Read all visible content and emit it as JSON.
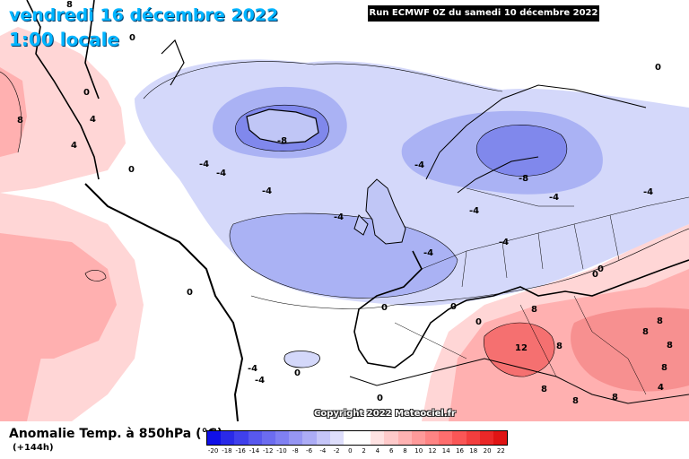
{
  "header": {
    "date": "vendredi 16 décembre 2022",
    "local_time": "1:00 locale",
    "run": "Run ECMWF 0Z du samedi 10 décembre 2022"
  },
  "copyright": "Copyright 2022 Meteociel.fr",
  "legend": {
    "variable": "Anomalie Temp. à 850hPa (°C)",
    "forecast_hour": "(+144h)",
    "ticks": [
      "-20",
      "-18",
      "-16",
      "-14",
      "-12",
      "-10",
      "-8",
      "-6",
      "-4",
      "-2",
      "0",
      "2",
      "4",
      "6",
      "8",
      "10",
      "12",
      "14",
      "16",
      "18",
      "20",
      "22"
    ],
    "colors": [
      "#1010e8",
      "#2a2ae8",
      "#4040ec",
      "#5858ee",
      "#6c6cf0",
      "#8080f2",
      "#9696f4",
      "#acacf6",
      "#c6c6f8",
      "#dedefb",
      "#ffffff",
      "#ffffff",
      "#ffe2e2",
      "#ffcaca",
      "#ffb2b2",
      "#ff9a9a",
      "#ff8484",
      "#ff6e6e",
      "#fa5656",
      "#f23e3e",
      "#ea2828",
      "#e01414"
    ]
  },
  "colors": {
    "cold_light": "#d4d8fa",
    "cold_medium": "#aab2f4",
    "cold_strong": "#8088ec",
    "warm_light": "#ffd6d6",
    "warm_medium": "#ffb0b0",
    "warm_strong": "#f57070",
    "neutral": "#ffffff"
  },
  "map_labels": [
    {
      "id": "greenland-warm-8",
      "text": "8"
    },
    {
      "id": "greenland-0-a",
      "text": "0"
    },
    {
      "id": "greenland-4-a",
      "text": "4"
    },
    {
      "id": "greenland-4-b",
      "text": "4"
    },
    {
      "id": "greenland-0-b",
      "text": "0"
    },
    {
      "id": "greenland-0-c",
      "text": "0"
    },
    {
      "id": "labrador-8",
      "text": "8"
    },
    {
      "id": "atlantic-4-a",
      "text": "-4"
    },
    {
      "id": "atlantic-4-b",
      "text": "-4"
    },
    {
      "id": "atlantic-4-c",
      "text": "-4"
    },
    {
      "id": "atlantic-4-d",
      "text": "-4"
    },
    {
      "id": "iceland-8",
      "text": "-8"
    },
    {
      "id": "norway-4",
      "text": "-4"
    },
    {
      "id": "scandinavia-8",
      "text": "-8"
    },
    {
      "id": "russia-4",
      "text": "-4"
    },
    {
      "id": "russia-0",
      "text": "0"
    },
    {
      "id": "uk-4",
      "text": "-4"
    },
    {
      "id": "europe-4-a",
      "text": "-4"
    },
    {
      "id": "europe-4-b",
      "text": "-4"
    },
    {
      "id": "europe-4-c",
      "text": "-4"
    },
    {
      "id": "atlantic-0",
      "text": "0"
    },
    {
      "id": "iberia-0-a",
      "text": "0"
    },
    {
      "id": "iberia-0-b",
      "text": "0"
    },
    {
      "id": "azores-0",
      "text": "0"
    },
    {
      "id": "azores-4-a",
      "text": "-4"
    },
    {
      "id": "azores-4-b",
      "text": "-4"
    },
    {
      "id": "africa-0",
      "text": "0"
    },
    {
      "id": "med-0-a",
      "text": "0"
    },
    {
      "id": "med-0-b",
      "text": "0"
    },
    {
      "id": "sahara-12",
      "text": "12"
    },
    {
      "id": "greece-8",
      "text": "8"
    },
    {
      "id": "turkey-8-a",
      "text": "8"
    },
    {
      "id": "turkey-8-b",
      "text": "8"
    },
    {
      "id": "turkey-8-c",
      "text": "8"
    },
    {
      "id": "mideast-8-a",
      "text": "8"
    },
    {
      "id": "mideast-8-b",
      "text": "8"
    },
    {
      "id": "mideast-8-c",
      "text": "8"
    },
    {
      "id": "libya-8",
      "text": "8"
    },
    {
      "id": "med-8",
      "text": "8"
    },
    {
      "id": "egypt-4",
      "text": "4"
    },
    {
      "id": "caspian-0",
      "text": "0"
    }
  ]
}
